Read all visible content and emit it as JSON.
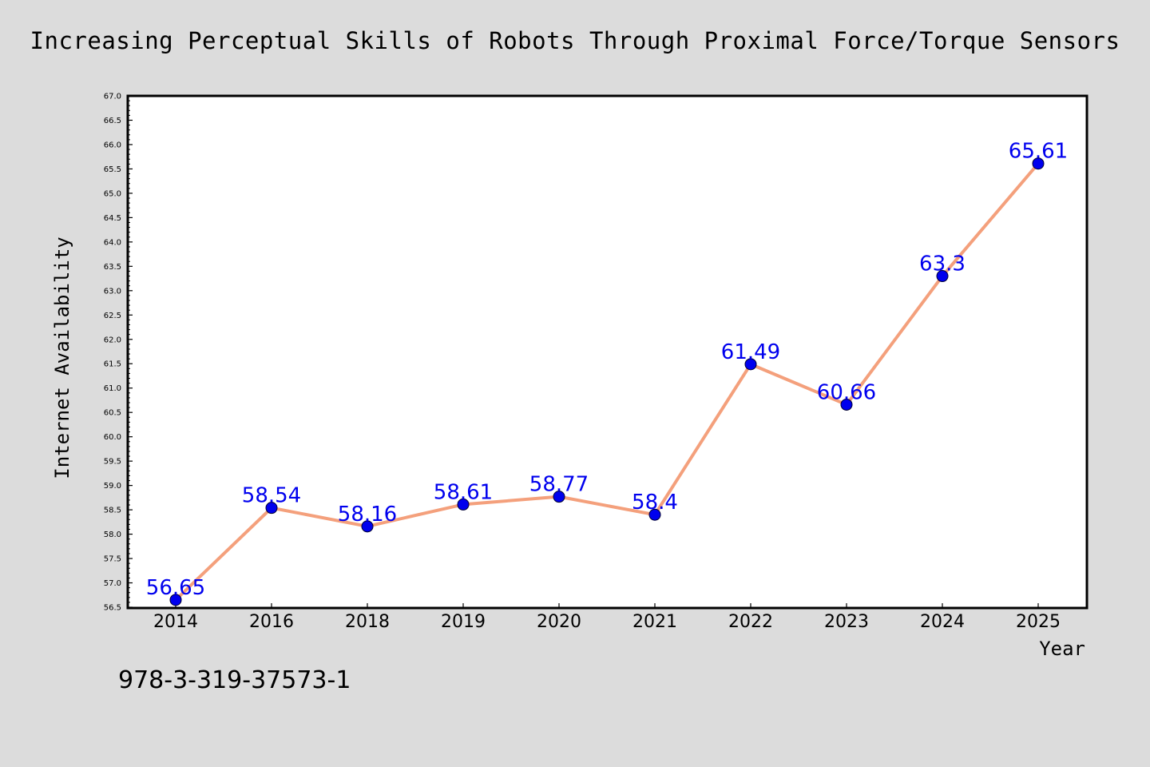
{
  "title": "Increasing Perceptual Skills of Robots Through Proximal Force/Torque Sensors",
  "caption": "978-3-319-37573-1",
  "colors": {
    "background": "#dcdcdc",
    "plot_background": "#ffffff",
    "line": "#f4a07c",
    "marker": "#0000ee",
    "label": "#0000ee"
  },
  "chart_data": {
    "type": "line",
    "title": "Increasing Perceptual Skills of Robots Through Proximal Force/Torque Sensors",
    "xlabel": "Year",
    "ylabel": "Internet Availability",
    "categories": [
      "2014",
      "2016",
      "2018",
      "2019",
      "2020",
      "2021",
      "2022",
      "2023",
      "2024",
      "2025"
    ],
    "series": [
      {
        "values": [
          56.65,
          58.54,
          58.16,
          58.61,
          58.77,
          58.4,
          61.49,
          60.66,
          63.3,
          65.61
        ],
        "labels": [
          "56.65",
          "58.54",
          "58.16",
          "58.61",
          "58.77",
          "58.4",
          "61.49",
          "60.66",
          "63.3",
          "65.61"
        ]
      }
    ],
    "ylim": [
      56.5,
      67.0
    ],
    "yticks": [
      "56.5",
      "57.0",
      "57.5",
      "58.0",
      "58.5",
      "59.0",
      "59.5",
      "60.0",
      "60.5",
      "61.0",
      "61.5",
      "62.0",
      "62.5",
      "63.0",
      "63.5",
      "64.0",
      "64.5",
      "65.0",
      "65.5",
      "66.0",
      "66.5",
      "67.0"
    ],
    "grid": false,
    "legend": "none"
  }
}
